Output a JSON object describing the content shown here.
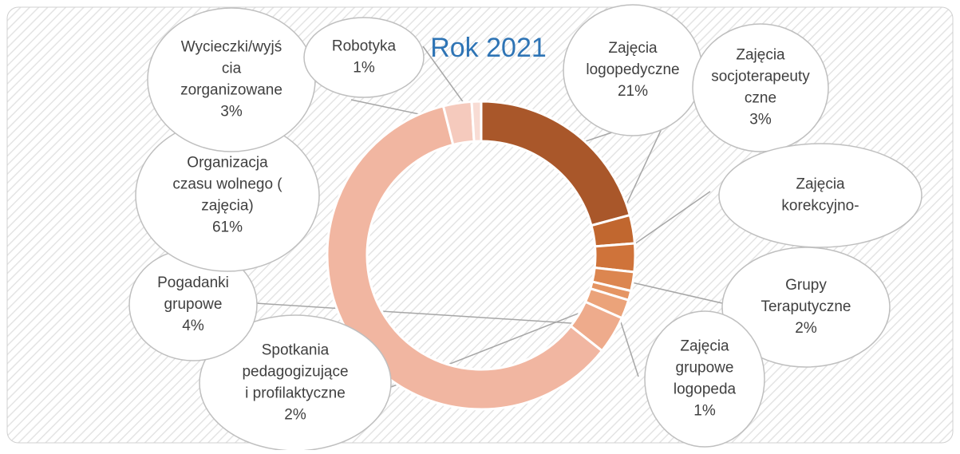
{
  "chart_data": {
    "type": "donut",
    "title": "Rok 2021",
    "categories": [
      [
        "Zajęcia",
        "logopedyczne"
      ],
      [
        "Zajęcia",
        "socjoterapeuty",
        "czne"
      ],
      [
        "Zajęcia",
        "korekcyjno-"
      ],
      [
        "Grupy",
        "Teraputyczne"
      ],
      [
        "Zajęcia",
        "grupowe",
        "logopeda"
      ],
      [
        "Spotkania",
        "pedagogizujące",
        "i profilaktyczne"
      ],
      [
        "Pogadanki",
        "grupowe"
      ],
      [
        "Organizacja",
        "czasu wolnego (",
        "zajęcia)"
      ],
      [
        "Wycieczki/wyjś",
        "cia",
        "zorganizowane"
      ],
      [
        "Robotyka"
      ]
    ],
    "values": [
      21,
      3,
      3,
      2,
      1,
      2,
      4,
      61,
      3,
      1
    ],
    "value_labels": [
      "21%",
      "3%",
      null,
      "2%",
      "1%",
      "2%",
      "4%",
      "61%",
      "3%",
      "1%"
    ],
    "colors": [
      "#a9572a",
      "#c1672f",
      "#cf733a",
      "#dc8650",
      "#e59563",
      "#eba37a",
      "#eeab8c",
      "#f1b6a1",
      "#f5cabd",
      "#f8dcd4"
    ]
  }
}
